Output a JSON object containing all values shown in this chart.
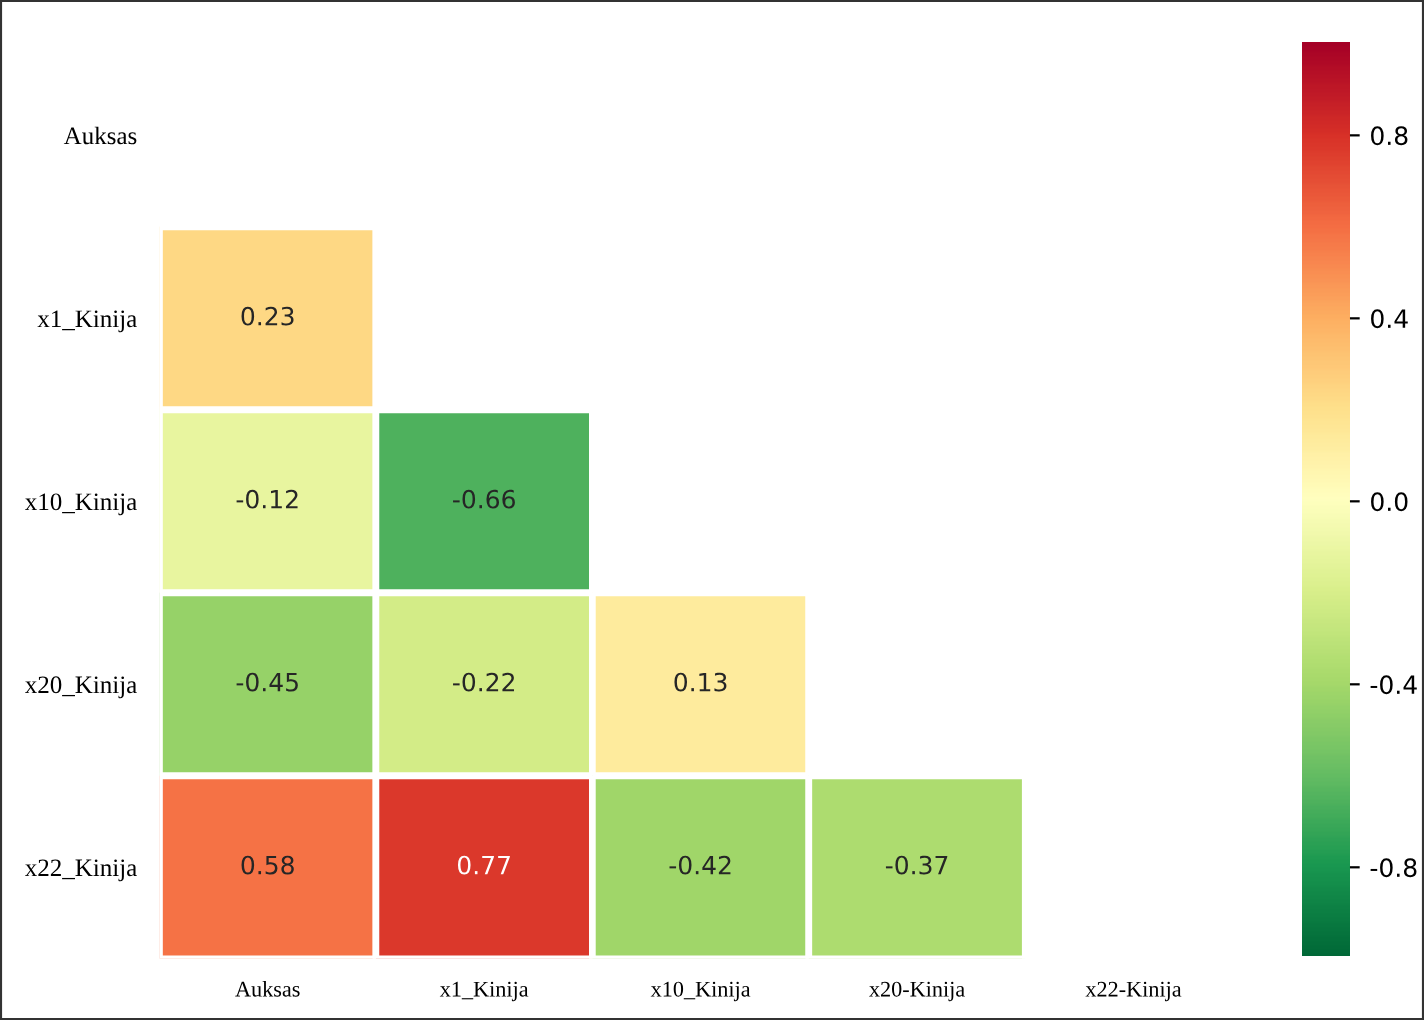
{
  "chart_data": {
    "type": "heatmap",
    "categories": [
      "Auksas",
      "x1_Kinija",
      "x10_Kinija",
      "x20-Kinija",
      "x22-Kinija"
    ],
    "y_categories": [
      "Auksas",
      "x1_Kinija",
      "x10_Kinija",
      "x20_Kinija",
      "x22_Kinija"
    ],
    "cells": [
      [
        null,
        null,
        null,
        null,
        null
      ],
      [
        0.23,
        null,
        null,
        null,
        null
      ],
      [
        -0.12,
        -0.66,
        null,
        null,
        null
      ],
      [
        -0.45,
        -0.22,
        0.13,
        null,
        null
      ],
      [
        0.58,
        0.77,
        -0.42,
        -0.37,
        null
      ]
    ],
    "data_labels": true,
    "clim": [
      -1,
      1
    ],
    "cticks": [
      -0.8,
      -0.4,
      {
        "value": 0,
        "label": "0.0"
      },
      0.4,
      0.8
    ]
  }
}
